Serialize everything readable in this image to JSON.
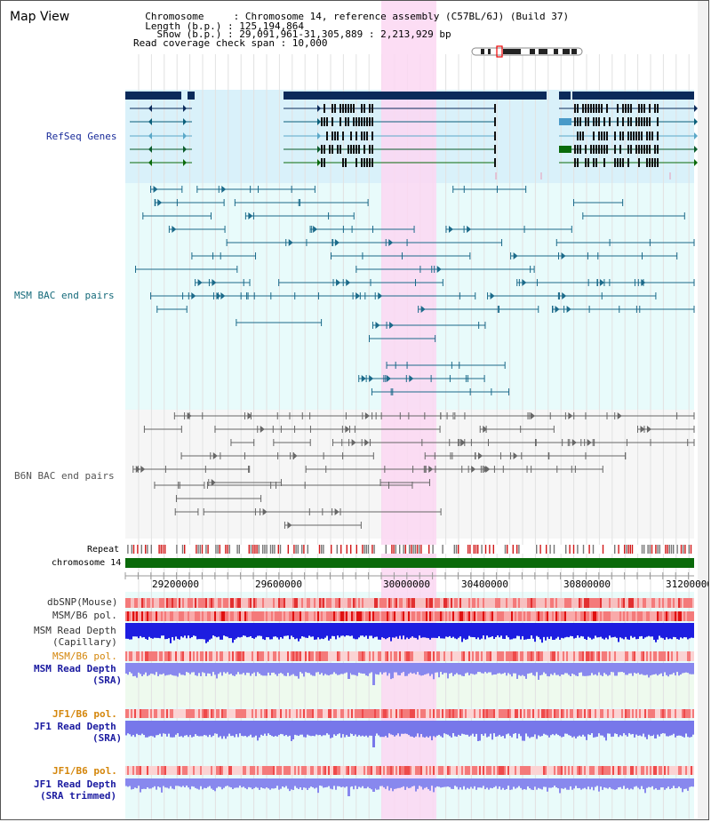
{
  "title": "Map View",
  "header": {
    "chromosome_line": "  Chromosome     : Chromosome 14, reference assembly (C57BL/6J) (Build 37)",
    "length_line": "  Length (b.p.) : 125,194,864",
    "show_line": "    Show (b.p.) : 29,091,961-31,305,889 : 2,213,929 bp",
    "coverage_line": "Read coverage check span : 10,000"
  },
  "tracks": {
    "refseq": "RefSeq Genes",
    "msm_bac": "MSM BAC end pairs",
    "b6n_bac": "B6N BAC end pairs",
    "repeat": "Repeat",
    "chromosome": "chromosome 14",
    "dbsnp": "dbSNP(Mouse)",
    "msm_pol": "MSM/B6 pol.",
    "msm_depth_cap_1": "MSM Read Depth",
    "msm_depth_cap_2": "(Capillary)",
    "msm_pol_2": "MSM/B6 pol.",
    "msm_depth_sra_1": "MSM Read Depth",
    "msm_depth_sra_2": "(SRA)",
    "jf1_pol": "JF1/B6 pol.",
    "jf1_depth_1": "JF1 Read Depth",
    "jf1_depth_2": "(SRA)",
    "jf1_pol_2": "JF1/B6 pol.",
    "jf1_trim_1": "JF1 Read Depth",
    "jf1_trim_2": "(SRA trimmed)"
  },
  "axis": {
    "ticks": [
      "29200000",
      "29600000",
      "30000000",
      "30400000",
      "30800000",
      "31200000"
    ]
  },
  "colors": {
    "refseq_label": "#1a2c9a",
    "msm_label": "#156a7a",
    "b6n_label": "#555555",
    "pol_label": "#d4860b",
    "depth_label": "#1a1aa0",
    "highlight": "#fbd7f2",
    "gene_dark": "#0b2a5a",
    "chromosome_bar": "#0a6a0a"
  }
}
